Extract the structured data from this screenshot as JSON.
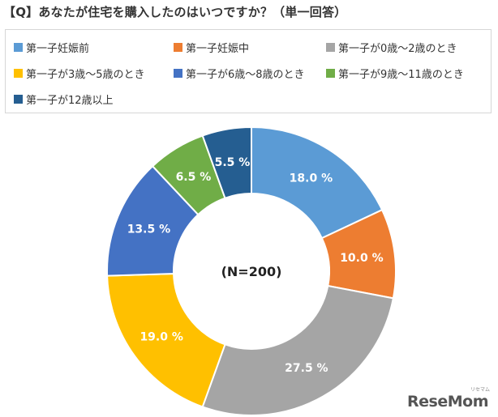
{
  "chart_data": {
    "type": "pie",
    "title": "【Q】あなたが住宅を購入したのはいつですか？（単一回答）",
    "center_label": "(N=200)",
    "categories": [
      "第一子妊娠前",
      "第一子妊娠中",
      "第一子が0歳～2歳のとき",
      "第一子が3歳～5歳のとき",
      "第一子が6歳～8歳のとき",
      "第一子が9歳～11歳のとき",
      "第一子が12歳以上"
    ],
    "values": [
      18.0,
      10.0,
      27.5,
      19.0,
      13.5,
      6.5,
      5.5
    ],
    "value_labels": [
      "18.0 %",
      "10.0 %",
      "27.5 %",
      "19.0 %",
      "13.5 %",
      "6.5 %",
      "5.5 %"
    ],
    "colors": [
      "#5B9BD5",
      "#ED7D31",
      "#A5A5A5",
      "#FFC000",
      "#4472C4",
      "#70AD47",
      "#255E91"
    ],
    "donut": true,
    "legend_position": "top"
  },
  "watermark": {
    "logo": "ReseMom",
    "sub": "リセマム"
  }
}
